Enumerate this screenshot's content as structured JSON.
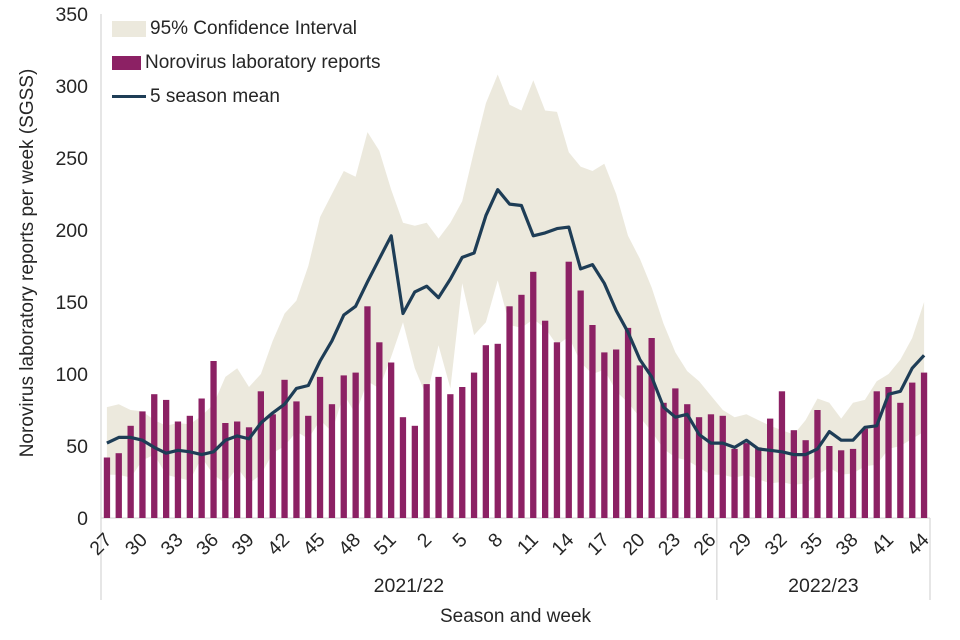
{
  "chart_data": {
    "type": "combo-area-bar-line",
    "title": "",
    "xlabel": "Season and week",
    "ylabel": "Norovirus laboratory reports per week (SGSS)",
    "ylim": [
      0,
      350
    ],
    "yticks": [
      0,
      50,
      100,
      150,
      200,
      250,
      300,
      350
    ],
    "x_tick_every": 3,
    "legend_position": "top-left-inside",
    "grid": "off",
    "colors": {
      "ci_area": "#ece9dd",
      "bars": "#8c2164",
      "mean_line": "#1e3d56",
      "axis": "#d9d9d9",
      "text": "#262626"
    },
    "season_groups": [
      {
        "label": "2021/22",
        "start": 0,
        "end": 51
      },
      {
        "label": "2022/23",
        "start": 52,
        "end": 69
      }
    ],
    "weeks": [
      27,
      28,
      29,
      30,
      31,
      32,
      33,
      34,
      35,
      36,
      37,
      38,
      39,
      40,
      41,
      42,
      43,
      44,
      45,
      46,
      47,
      48,
      49,
      50,
      51,
      52,
      1,
      2,
      3,
      4,
      5,
      6,
      7,
      8,
      9,
      10,
      11,
      12,
      13,
      14,
      15,
      16,
      17,
      18,
      19,
      20,
      21,
      22,
      23,
      24,
      25,
      26,
      27,
      28,
      29,
      30,
      31,
      32,
      33,
      34,
      35,
      36,
      37,
      38,
      39,
      40,
      41,
      42,
      43,
      44
    ],
    "series": [
      {
        "name": "95% Confidence Interval",
        "type": "area",
        "lower": [
          30,
          30,
          28,
          40,
          44,
          30,
          28,
          26,
          42,
          30,
          24,
          35,
          24,
          30,
          45,
          50,
          60,
          55,
          68,
          60,
          86,
          72,
          95,
          90,
          112,
          136,
          104,
          84,
          120,
          90,
          163,
          127,
          136,
          165,
          134,
          132,
          138,
          132,
          120,
          126,
          108,
          100,
          103,
          88,
          80,
          70,
          60,
          48,
          42,
          40,
          35,
          30,
          30,
          28,
          30,
          27,
          24,
          25,
          23,
          24,
          30,
          35,
          30,
          31,
          36,
          37,
          48,
          50,
          55,
          60
        ],
        "upper": [
          77,
          79,
          75,
          74,
          68,
          64,
          66,
          65,
          71,
          79,
          98,
          104,
          91,
          100,
          123,
          142,
          151,
          175,
          209,
          225,
          241,
          237,
          268,
          255,
          228,
          205,
          203,
          205,
          194,
          205,
          220,
          255,
          288,
          308,
          287,
          283,
          304,
          283,
          282,
          254,
          244,
          241,
          246,
          225,
          196,
          180,
          160,
          135,
          115,
          102,
          95,
          85,
          75,
          70,
          72,
          68,
          64,
          61,
          58,
          68,
          83,
          80,
          69,
          80,
          82,
          95,
          100,
          110,
          125,
          150
        ]
      },
      {
        "name": "Norovirus laboratory reports",
        "type": "bar",
        "values": [
          42,
          45,
          64,
          74,
          86,
          82,
          67,
          71,
          83,
          109,
          66,
          67,
          63,
          88,
          72,
          96,
          81,
          71,
          98,
          79,
          99,
          101,
          147,
          122,
          108,
          70,
          64,
          93,
          98,
          86,
          91,
          101,
          120,
          121,
          147,
          155,
          171,
          137,
          122,
          178,
          158,
          134,
          115,
          117,
          132,
          106,
          125,
          80,
          90,
          79,
          70,
          72,
          71,
          48,
          52,
          49,
          69,
          88,
          61,
          54,
          75,
          50,
          47,
          48,
          62,
          88,
          91,
          80,
          94,
          101
        ]
      },
      {
        "name": "5 season mean",
        "type": "line",
        "values": [
          52,
          56,
          56,
          54,
          49,
          45,
          47,
          46,
          44,
          46,
          54,
          57,
          55,
          66,
          73,
          79,
          90,
          92,
          109,
          123,
          141,
          147,
          164,
          180,
          196,
          142,
          157,
          161,
          153,
          166,
          181,
          184,
          210,
          228,
          218,
          217,
          196,
          198,
          201,
          202,
          173,
          176,
          163,
          144,
          129,
          110,
          98,
          77,
          70,
          72,
          58,
          52,
          52,
          49,
          54,
          48,
          47,
          46,
          44,
          44,
          48,
          60,
          54,
          54,
          63,
          64,
          86,
          88,
          104,
          113
        ]
      }
    ]
  }
}
